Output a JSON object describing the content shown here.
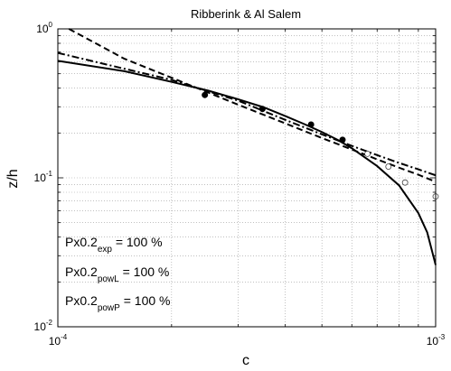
{
  "chart_data": {
    "type": "line",
    "title": "Ribberink & Al Salem",
    "xlabel": "c",
    "ylabel": "z/h",
    "xscale": "log",
    "yscale": "log",
    "xlim": [
      0.0001,
      0.001
    ],
    "ylim": [
      0.01,
      1
    ],
    "grid": true,
    "x_tick_labels": [
      {
        "value": 0.0001,
        "base": "10",
        "exp": "-4"
      },
      {
        "value": 0.001,
        "base": "10",
        "exp": "-3"
      }
    ],
    "y_tick_labels": [
      {
        "value": 0.01,
        "base": "10",
        "exp": "-2"
      },
      {
        "value": 0.1,
        "base": "10",
        "exp": "-1"
      },
      {
        "value": 1,
        "base": "10",
        "exp": "0"
      }
    ],
    "series": [
      {
        "style": "solid",
        "x": [
          0.0001,
          0.00015,
          0.0002,
          0.00025,
          0.0003,
          0.00035,
          0.0004,
          0.00045,
          0.0005,
          0.00055,
          0.0006,
          0.0007,
          0.0008,
          0.0009,
          0.00095,
          0.001
        ],
        "y": [
          0.61,
          0.52,
          0.441,
          0.385,
          0.337,
          0.298,
          0.26,
          0.229,
          0.203,
          0.18,
          0.158,
          0.12,
          0.089,
          0.058,
          0.043,
          0.026
        ]
      },
      {
        "style": "dashed",
        "x": [
          0.000107,
          0.00015,
          0.0002,
          0.0003,
          0.0004,
          0.0005,
          0.0006,
          0.0007,
          0.0008,
          0.0009,
          0.001
        ],
        "y": [
          1.0,
          0.63,
          0.47,
          0.31,
          0.232,
          0.185,
          0.155,
          0.133,
          0.117,
          0.105,
          0.094
        ]
      },
      {
        "style": "dash-dot",
        "x": [
          0.0001,
          0.00015,
          0.0002,
          0.0003,
          0.0004,
          0.0005,
          0.0006,
          0.0007,
          0.0008,
          0.0009,
          0.001
        ],
        "y": [
          0.69,
          0.54,
          0.455,
          0.33,
          0.245,
          0.196,
          0.164,
          0.142,
          0.126,
          0.114,
          0.104
        ]
      }
    ],
    "points_filled": {
      "x": [
        0.000245,
        0.000348,
        0.000468,
        0.000567
      ],
      "y": [
        0.36,
        0.29,
        0.228,
        0.18
      ]
    },
    "points_open": {
      "x": [
        0.00066,
        0.00075,
        0.00083,
        0.001
      ],
      "y": [
        0.145,
        0.119,
        0.093,
        0.075
      ]
    },
    "annotations": [
      {
        "base": "Px0.2",
        "sub": "exp",
        "rest": " = 100 %"
      },
      {
        "base": "Px0.2",
        "sub": "powL",
        "rest": " = 100 %"
      },
      {
        "base": "Px0.2",
        "sub": "powP",
        "rest": " = 100 %"
      }
    ]
  }
}
